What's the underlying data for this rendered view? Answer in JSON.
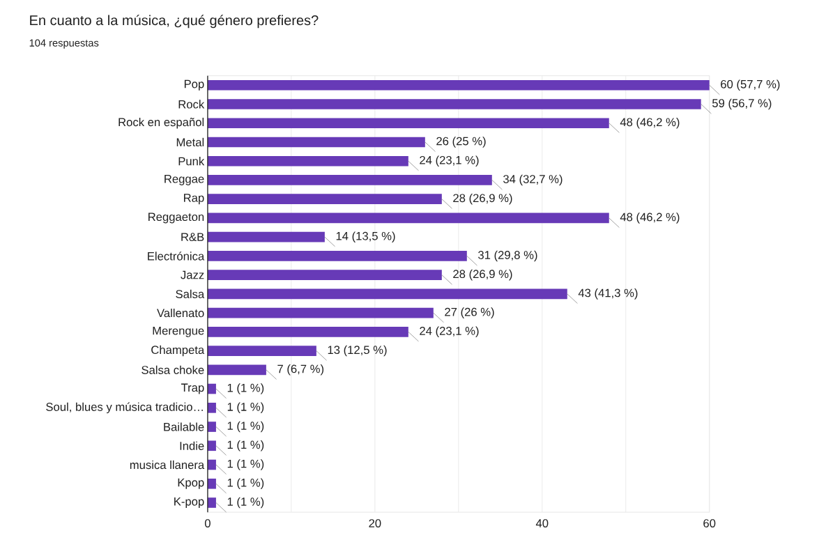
{
  "chart_data": {
    "type": "bar",
    "orientation": "horizontal",
    "title": "En cuanto a la música, ¿qué género prefieres?",
    "subtitle": "104 respuestas",
    "categories": [
      "Pop",
      "Rock",
      "Rock en español",
      "Metal",
      "Punk",
      "Reggae",
      "Rap",
      "Reggaeton",
      "R&B",
      "Electrónica",
      "Jazz",
      "Salsa",
      "Vallenato",
      "Merengue",
      "Champeta",
      "Salsa choke",
      "Trap",
      "Soul, blues y música tradicio…",
      "Bailable",
      "Indie",
      "musica llanera",
      "Kpop",
      "K-pop"
    ],
    "values": [
      60,
      59,
      48,
      26,
      24,
      34,
      28,
      48,
      14,
      31,
      28,
      43,
      27,
      24,
      13,
      7,
      1,
      1,
      1,
      1,
      1,
      1,
      1
    ],
    "value_labels": [
      "60 (57,7 %)",
      "59 (56,7 %)",
      "48 (46,2 %)",
      "26 (25 %)",
      "24 (23,1 %)",
      "34 (32,7 %)",
      "28 (26,9 %)",
      "48 (46,2 %)",
      "14 (13,5 %)",
      "31 (29,8 %)",
      "28 (26,9 %)",
      "43 (41,3 %)",
      "27 (26 %)",
      "24 (23,1 %)",
      "13 (12,5 %)",
      "7 (6,7 %)",
      "1 (1 %)",
      "1 (1 %)",
      "1 (1 %)",
      "1 (1 %)",
      "1 (1 %)",
      "1 (1 %)",
      "1 (1 %)"
    ],
    "color": "#673ab7",
    "xlim": [
      0,
      60
    ],
    "xticks": [
      0,
      {
        "value": 10,
        "label": null
      },
      20,
      {
        "value": 30,
        "label": null
      },
      40,
      {
        "value": 50,
        "label": null
      },
      60
    ],
    "grid": "x"
  }
}
